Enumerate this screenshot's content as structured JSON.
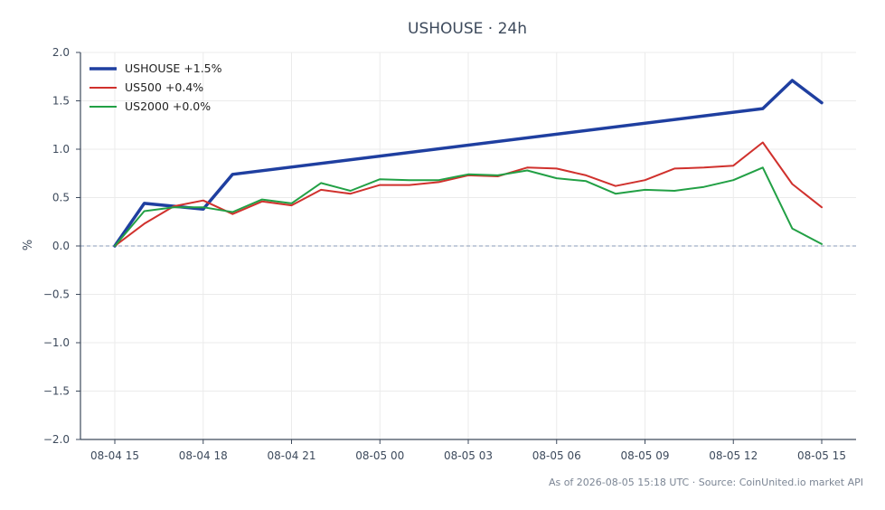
{
  "chart_data": {
    "type": "line",
    "title": "USHOUSE · 24h",
    "xlabel": "",
    "ylabel": "%",
    "ylim": [
      -2.0,
      2.0
    ],
    "xlim": [
      "08-04 13:50",
      "08-05 16:10"
    ],
    "y_ticks": [
      "2.0",
      "1.5",
      "1.0",
      "0.5",
      "0.0",
      "−0.5",
      "−1.0",
      "−1.5",
      "−2.0"
    ],
    "x_ticks": [
      "08-04 15",
      "08-04 18",
      "08-04 21",
      "08-05 00",
      "08-05 03",
      "08-05 06",
      "08-05 09",
      "08-05 12",
      "08-05 15"
    ],
    "grid": true,
    "zero_line": true,
    "legend": "top-left",
    "series": [
      {
        "name": "USHOUSE +1.5%",
        "color": "#1f3fa0",
        "line_width": "thick",
        "points": [
          {
            "x": "08-04 15:00",
            "y": 0.0
          },
          {
            "x": "08-04 16:00",
            "y": 0.44
          },
          {
            "x": "08-04 18:00",
            "y": 0.38
          },
          {
            "x": "08-04 19:00",
            "y": 0.74
          },
          {
            "x": "08-05 13:00",
            "y": 1.42
          },
          {
            "x": "08-05 14:00",
            "y": 1.71
          },
          {
            "x": "08-05 15:00",
            "y": 1.48
          }
        ]
      },
      {
        "name": "US500 +0.4%",
        "color": "#d0312d",
        "line_width": "normal",
        "points": [
          {
            "x": "08-04 15:00",
            "y": 0.0
          },
          {
            "x": "08-04 16:00",
            "y": 0.23
          },
          {
            "x": "08-04 17:00",
            "y": 0.41
          },
          {
            "x": "08-04 18:00",
            "y": 0.47
          },
          {
            "x": "08-04 19:00",
            "y": 0.33
          },
          {
            "x": "08-04 20:00",
            "y": 0.46
          },
          {
            "x": "08-04 21:00",
            "y": 0.42
          },
          {
            "x": "08-04 22:00",
            "y": 0.58
          },
          {
            "x": "08-04 23:00",
            "y": 0.54
          },
          {
            "x": "08-05 00:00",
            "y": 0.63
          },
          {
            "x": "08-05 01:00",
            "y": 0.63
          },
          {
            "x": "08-05 02:00",
            "y": 0.66
          },
          {
            "x": "08-05 03:00",
            "y": 0.73
          },
          {
            "x": "08-05 04:00",
            "y": 0.72
          },
          {
            "x": "08-05 05:00",
            "y": 0.81
          },
          {
            "x": "08-05 06:00",
            "y": 0.8
          },
          {
            "x": "08-05 07:00",
            "y": 0.73
          },
          {
            "x": "08-05 08:00",
            "y": 0.62
          },
          {
            "x": "08-05 09:00",
            "y": 0.68
          },
          {
            "x": "08-05 10:00",
            "y": 0.8
          },
          {
            "x": "08-05 11:00",
            "y": 0.81
          },
          {
            "x": "08-05 12:00",
            "y": 0.83
          },
          {
            "x": "08-05 13:00",
            "y": 1.07
          },
          {
            "x": "08-05 14:00",
            "y": 0.64
          },
          {
            "x": "08-05 15:00",
            "y": 0.4
          }
        ]
      },
      {
        "name": "US2000 +0.0%",
        "color": "#22a045",
        "line_width": "normal",
        "points": [
          {
            "x": "08-04 15:00",
            "y": 0.0
          },
          {
            "x": "08-04 16:00",
            "y": 0.36
          },
          {
            "x": "08-04 17:00",
            "y": 0.4
          },
          {
            "x": "08-04 18:00",
            "y": 0.4
          },
          {
            "x": "08-04 19:00",
            "y": 0.35
          },
          {
            "x": "08-04 20:00",
            "y": 0.48
          },
          {
            "x": "08-04 21:00",
            "y": 0.44
          },
          {
            "x": "08-04 22:00",
            "y": 0.65
          },
          {
            "x": "08-04 23:00",
            "y": 0.57
          },
          {
            "x": "08-05 00:00",
            "y": 0.69
          },
          {
            "x": "08-05 01:00",
            "y": 0.68
          },
          {
            "x": "08-05 02:00",
            "y": 0.68
          },
          {
            "x": "08-05 03:00",
            "y": 0.74
          },
          {
            "x": "08-05 04:00",
            "y": 0.73
          },
          {
            "x": "08-05 05:00",
            "y": 0.78
          },
          {
            "x": "08-05 06:00",
            "y": 0.7
          },
          {
            "x": "08-05 07:00",
            "y": 0.67
          },
          {
            "x": "08-05 08:00",
            "y": 0.54
          },
          {
            "x": "08-05 09:00",
            "y": 0.58
          },
          {
            "x": "08-05 10:00",
            "y": 0.57
          },
          {
            "x": "08-05 11:00",
            "y": 0.61
          },
          {
            "x": "08-05 12:00",
            "y": 0.68
          },
          {
            "x": "08-05 13:00",
            "y": 0.81
          },
          {
            "x": "08-05 14:00",
            "y": 0.18
          },
          {
            "x": "08-05 15:00",
            "y": 0.02
          }
        ]
      }
    ],
    "footer": "As of 2026-08-05 15:18 UTC · Source: CoinUnited.io market API"
  },
  "colors": {
    "axis": "#3d4a5c",
    "grid": "#ebebeb",
    "zero_line": "#8a9bb8"
  }
}
